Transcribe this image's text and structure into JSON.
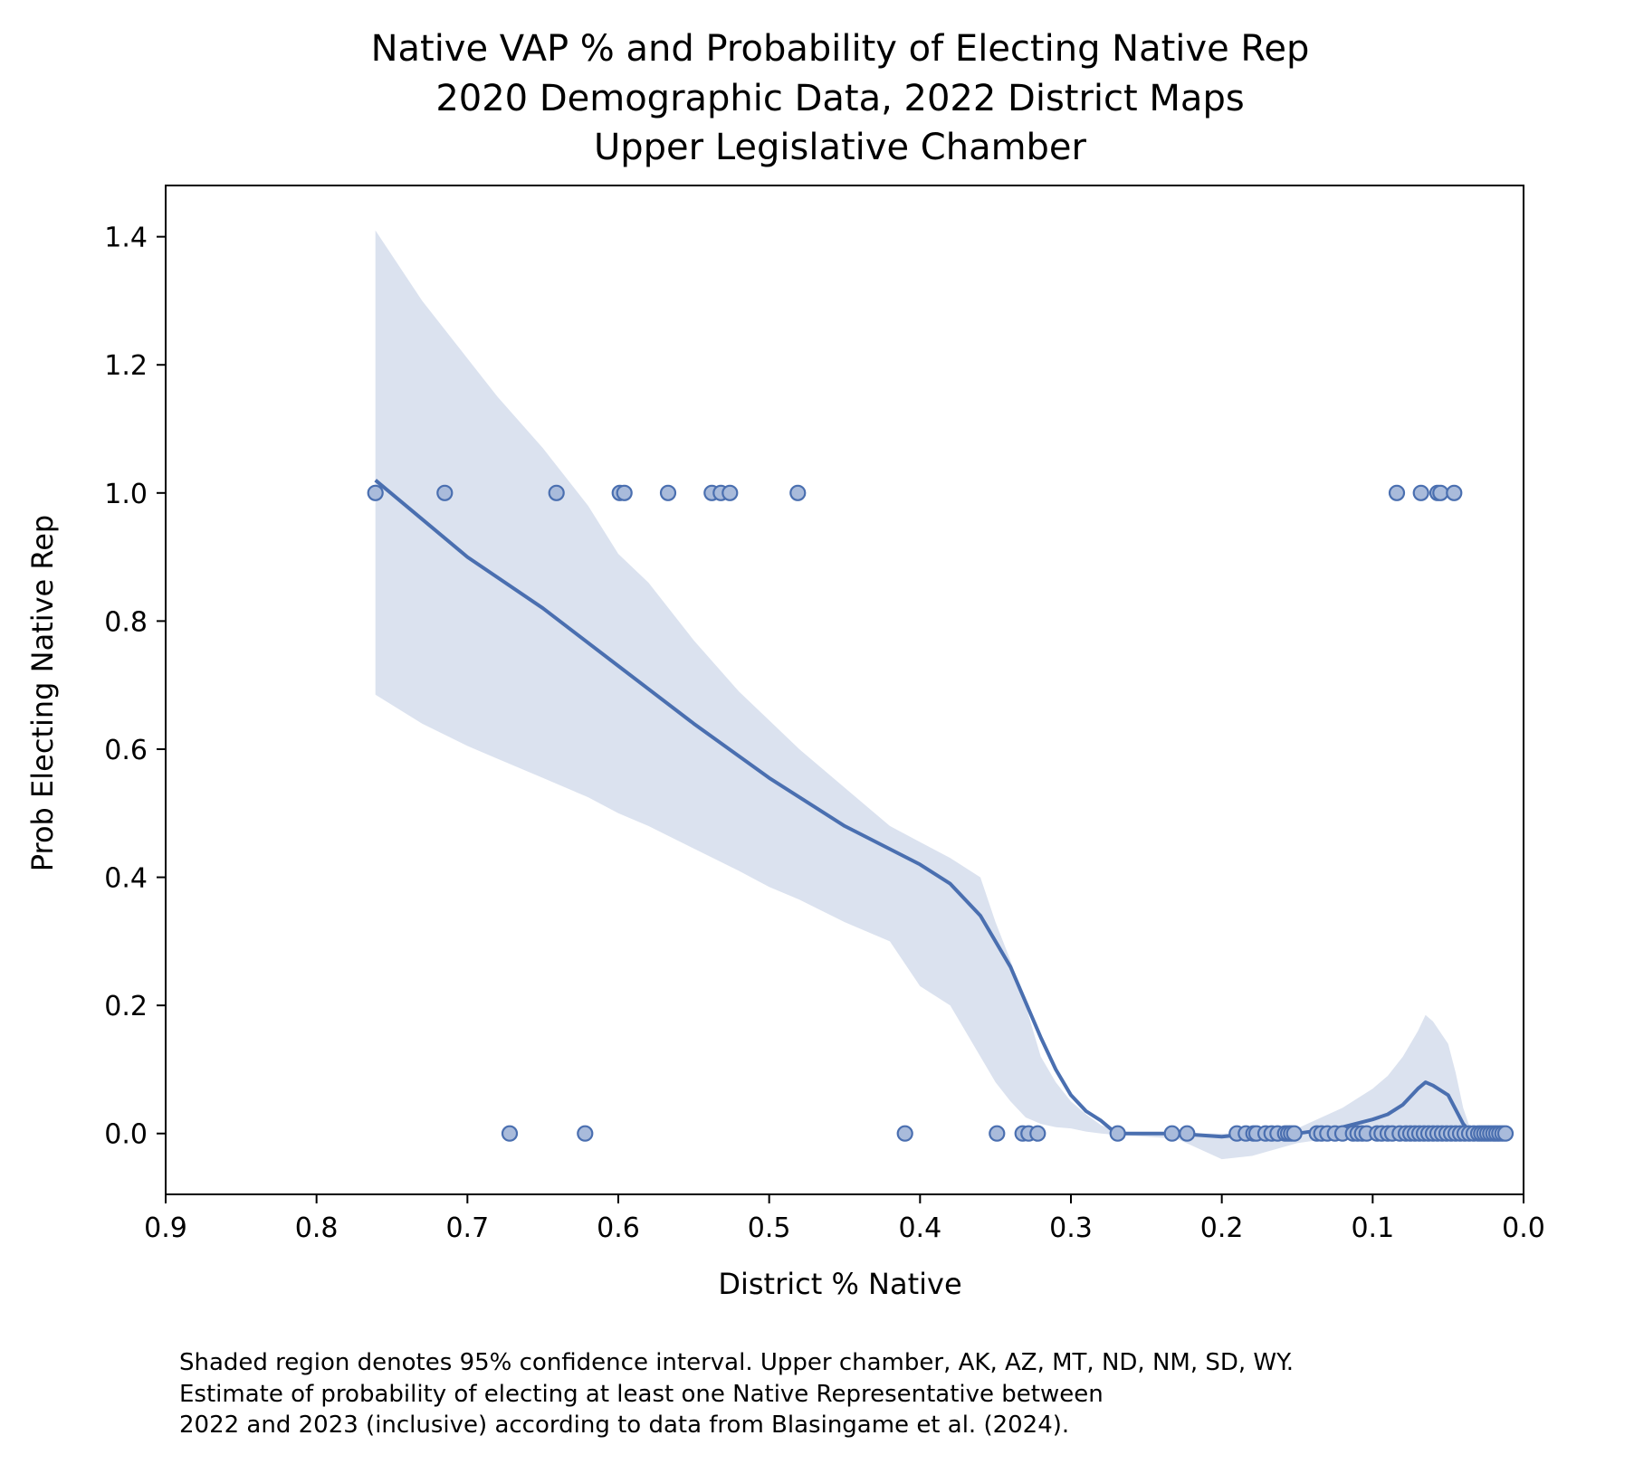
{
  "chart_data": {
    "type": "scatter",
    "title_lines": [
      "Native VAP % and Probability of Electing Native Rep",
      "2020 Demographic Data, 2022 District Maps",
      "Upper Legislative Chamber"
    ],
    "xlabel": "District % Native",
    "ylabel": "Prob Electing Native Rep",
    "xlim": [
      0.9,
      0.0
    ],
    "ylim": [
      -0.095,
      1.48
    ],
    "x_ticks": [
      0.9,
      0.8,
      0.7,
      0.6,
      0.5,
      0.4,
      0.3,
      0.2,
      0.1,
      0.0
    ],
    "x_tick_labels": [
      "0.9",
      "0.8",
      "0.7",
      "0.6",
      "0.5",
      "0.4",
      "0.3",
      "0.2",
      "0.1",
      "0.0"
    ],
    "y_ticks": [
      0.0,
      0.2,
      0.4,
      0.6,
      0.8,
      1.0,
      1.2,
      1.4
    ],
    "y_tick_labels": [
      "0.0",
      "0.2",
      "0.4",
      "0.6",
      "0.8",
      "1.0",
      "1.2",
      "1.4"
    ],
    "grid": false,
    "colors": {
      "line": "#4a6fb0",
      "band": "#dbe2ef",
      "point_fill": "#a9bbdb",
      "point_edge": "#4a6fb0"
    },
    "points": [
      {
        "x": 0.761,
        "y": 1
      },
      {
        "x": 0.715,
        "y": 1
      },
      {
        "x": 0.641,
        "y": 1
      },
      {
        "x": 0.599,
        "y": 1
      },
      {
        "x": 0.596,
        "y": 1
      },
      {
        "x": 0.567,
        "y": 1
      },
      {
        "x": 0.538,
        "y": 1
      },
      {
        "x": 0.532,
        "y": 1
      },
      {
        "x": 0.526,
        "y": 1
      },
      {
        "x": 0.481,
        "y": 1
      },
      {
        "x": 0.084,
        "y": 1
      },
      {
        "x": 0.068,
        "y": 1
      },
      {
        "x": 0.057,
        "y": 1
      },
      {
        "x": 0.055,
        "y": 1
      },
      {
        "x": 0.046,
        "y": 1
      },
      {
        "x": 0.672,
        "y": 0
      },
      {
        "x": 0.622,
        "y": 0
      },
      {
        "x": 0.41,
        "y": 0
      },
      {
        "x": 0.349,
        "y": 0
      },
      {
        "x": 0.332,
        "y": 0
      },
      {
        "x": 0.328,
        "y": 0
      },
      {
        "x": 0.322,
        "y": 0
      },
      {
        "x": 0.269,
        "y": 0
      },
      {
        "x": 0.233,
        "y": 0
      },
      {
        "x": 0.223,
        "y": 0
      },
      {
        "x": 0.19,
        "y": 0
      },
      {
        "x": 0.184,
        "y": 0
      },
      {
        "x": 0.179,
        "y": 0
      },
      {
        "x": 0.177,
        "y": 0
      },
      {
        "x": 0.171,
        "y": 0
      },
      {
        "x": 0.167,
        "y": 0
      },
      {
        "x": 0.163,
        "y": 0
      },
      {
        "x": 0.158,
        "y": 0
      },
      {
        "x": 0.156,
        "y": 0
      },
      {
        "x": 0.154,
        "y": 0
      },
      {
        "x": 0.152,
        "y": 0
      },
      {
        "x": 0.137,
        "y": 0
      },
      {
        "x": 0.134,
        "y": 0
      },
      {
        "x": 0.13,
        "y": 0
      },
      {
        "x": 0.125,
        "y": 0
      },
      {
        "x": 0.12,
        "y": 0
      },
      {
        "x": 0.113,
        "y": 0
      },
      {
        "x": 0.11,
        "y": 0
      },
      {
        "x": 0.107,
        "y": 0
      },
      {
        "x": 0.104,
        "y": 0
      },
      {
        "x": 0.097,
        "y": 0
      },
      {
        "x": 0.094,
        "y": 0
      },
      {
        "x": 0.09,
        "y": 0
      },
      {
        "x": 0.087,
        "y": 0
      },
      {
        "x": 0.082,
        "y": 0
      },
      {
        "x": 0.078,
        "y": 0
      },
      {
        "x": 0.075,
        "y": 0
      },
      {
        "x": 0.072,
        "y": 0
      },
      {
        "x": 0.069,
        "y": 0
      },
      {
        "x": 0.066,
        "y": 0
      },
      {
        "x": 0.063,
        "y": 0
      },
      {
        "x": 0.06,
        "y": 0
      },
      {
        "x": 0.057,
        "y": 0
      },
      {
        "x": 0.054,
        "y": 0
      },
      {
        "x": 0.051,
        "y": 0
      },
      {
        "x": 0.048,
        "y": 0
      },
      {
        "x": 0.045,
        "y": 0
      },
      {
        "x": 0.042,
        "y": 0
      },
      {
        "x": 0.039,
        "y": 0
      },
      {
        "x": 0.036,
        "y": 0
      },
      {
        "x": 0.033,
        "y": 0
      },
      {
        "x": 0.03,
        "y": 0
      },
      {
        "x": 0.028,
        "y": 0
      },
      {
        "x": 0.026,
        "y": 0
      },
      {
        "x": 0.024,
        "y": 0
      },
      {
        "x": 0.022,
        "y": 0
      },
      {
        "x": 0.02,
        "y": 0
      },
      {
        "x": 0.018,
        "y": 0
      },
      {
        "x": 0.016,
        "y": 0
      },
      {
        "x": 0.014,
        "y": 0
      },
      {
        "x": 0.012,
        "y": 0
      }
    ],
    "fit_line": {
      "x": [
        0.761,
        0.7,
        0.65,
        0.6,
        0.55,
        0.5,
        0.45,
        0.4,
        0.38,
        0.36,
        0.34,
        0.32,
        0.31,
        0.3,
        0.29,
        0.28,
        0.27,
        0.25,
        0.23,
        0.2,
        0.18,
        0.15,
        0.12,
        0.1,
        0.09,
        0.08,
        0.07,
        0.065,
        0.06,
        0.05,
        0.04,
        0.035,
        0.02,
        0.012
      ],
      "y": [
        1.02,
        0.9,
        0.82,
        0.73,
        0.64,
        0.555,
        0.48,
        0.42,
        0.39,
        0.34,
        0.26,
        0.15,
        0.1,
        0.06,
        0.035,
        0.02,
        0.0,
        0.0,
        0.0,
        -0.005,
        0.0,
        0.0,
        0.01,
        0.022,
        0.03,
        0.045,
        0.07,
        0.08,
        0.075,
        0.06,
        0.015,
        0.002,
        0.0,
        0.0
      ]
    },
    "ci_band": {
      "x": [
        0.761,
        0.73,
        0.7,
        0.68,
        0.65,
        0.62,
        0.6,
        0.58,
        0.55,
        0.52,
        0.5,
        0.48,
        0.45,
        0.42,
        0.4,
        0.38,
        0.36,
        0.35,
        0.34,
        0.33,
        0.32,
        0.31,
        0.3,
        0.29,
        0.28,
        0.27,
        0.25,
        0.23,
        0.2,
        0.18,
        0.15,
        0.12,
        0.1,
        0.09,
        0.08,
        0.07,
        0.065,
        0.06,
        0.05,
        0.045,
        0.04,
        0.035,
        0.02,
        0.012
      ],
      "lower": [
        0.685,
        0.64,
        0.605,
        0.585,
        0.555,
        0.525,
        0.5,
        0.48,
        0.445,
        0.41,
        0.385,
        0.365,
        0.33,
        0.3,
        0.23,
        0.2,
        0.12,
        0.08,
        0.05,
        0.025,
        0.015,
        0.01,
        0.008,
        0.003,
        0.0,
        -0.002,
        -0.005,
        -0.008,
        -0.04,
        -0.035,
        -0.015,
        -0.005,
        0.002,
        0.005,
        0.005,
        0.005,
        0.005,
        0.003,
        0.0,
        0.0,
        0.0,
        0.0,
        0.0,
        0.0
      ],
      "upper": [
        1.41,
        1.3,
        1.21,
        1.15,
        1.07,
        0.98,
        0.905,
        0.86,
        0.77,
        0.69,
        0.645,
        0.6,
        0.54,
        0.48,
        0.455,
        0.43,
        0.4,
        0.33,
        0.27,
        0.2,
        0.12,
        0.08,
        0.05,
        0.03,
        0.013,
        0.004,
        0.0,
        0.0,
        0.0,
        0.0,
        0.008,
        0.04,
        0.07,
        0.09,
        0.12,
        0.16,
        0.185,
        0.175,
        0.14,
        0.095,
        0.04,
        0.005,
        0.0,
        0.0
      ]
    }
  },
  "caption_lines": [
    "Shaded region denotes 95% confidence interval. Upper chamber, AK, AZ, MT, ND, NM, SD, WY.",
    "Estimate of probability of electing at least one Native Representative between",
    "2022 and 2023 (inclusive) according to data from Blasingame et al. (2024)."
  ]
}
